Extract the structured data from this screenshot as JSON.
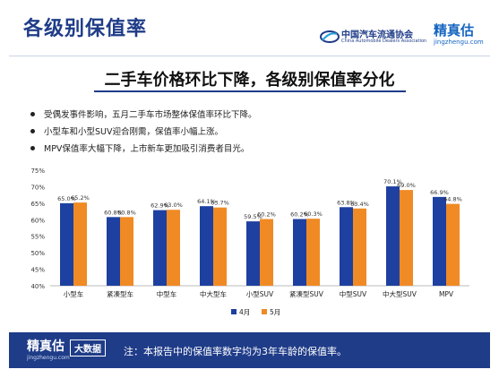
{
  "header": {
    "title": "各级别保值率",
    "association_cn": "中国汽车流通协会",
    "association_en": "China Automobile Dealers Association",
    "brand": "精真估",
    "brand_url": "jingzhengu.com"
  },
  "headline": "二手车价格环比下降，各级别保值率分化",
  "bullets": [
    "受偶发事件影响，五月二手车市场整体保值率环比下降。",
    "小型车和小型SUV迎合刚需，保值率小幅上涨。",
    "MPV保值率大幅下降，上市新车更加吸引消费者目光。"
  ],
  "colors": {
    "april": "#1e40a0",
    "may": "#f08a24",
    "title": "#1f3c88"
  },
  "chart_data": {
    "type": "bar",
    "categories": [
      "小型车",
      "紧凑型车",
      "中型车",
      "中大型车",
      "小型SUV",
      "紧凑型SUV",
      "中型SUV",
      "中大型SUV",
      "MPV"
    ],
    "series": [
      {
        "name": "4月",
        "values": [
          65.0,
          60.8,
          62.9,
          64.1,
          59.5,
          60.2,
          63.8,
          70.1,
          66.9
        ],
        "labels": [
          "65.0%",
          "60.8%",
          "62.9%",
          "64.1%",
          "59.5%",
          "60.2%",
          "63.8%",
          "70.1%",
          "66.9%"
        ]
      },
      {
        "name": "5月",
        "values": [
          65.2,
          60.8,
          63.0,
          63.7,
          60.2,
          60.3,
          63.4,
          69.0,
          64.8
        ],
        "labels": [
          "65.2%",
          "60.8%",
          "63.0%",
          "63.7%",
          "60.2%",
          "60.3%",
          "63.4%",
          "69.0%",
          "64.8%"
        ]
      }
    ],
    "yticks": [
      "40%",
      "45%",
      "50%",
      "55%",
      "60%",
      "65%",
      "70%",
      "75%"
    ],
    "ylim": [
      40,
      75
    ],
    "grid": false,
    "legend": "bottom-center"
  },
  "footer": {
    "brand": "精真估",
    "brand_url": "jingzhengu.com",
    "badge": "大数据",
    "note": "注：本报告中的保值率数字均为3年车龄的保值率。"
  }
}
